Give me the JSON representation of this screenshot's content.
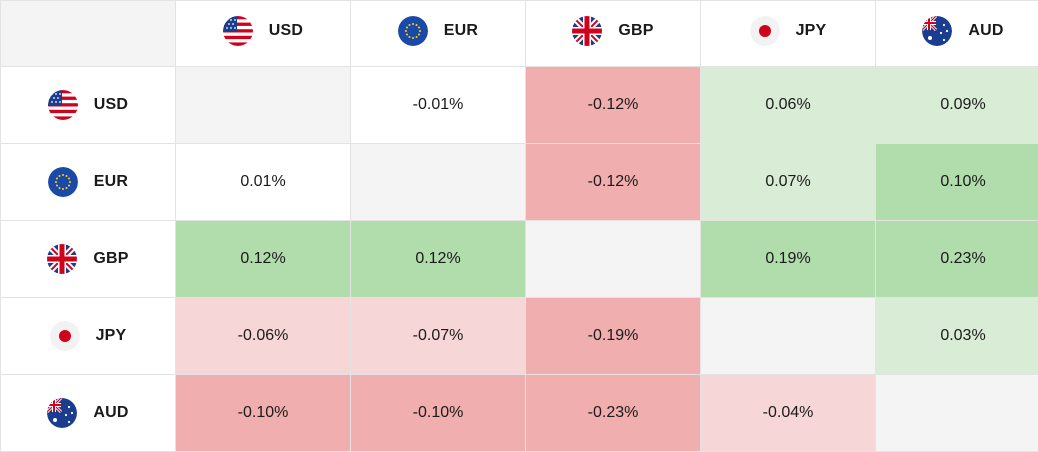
{
  "currencies": [
    "USD",
    "EUR",
    "GBP",
    "JPY",
    "AUD"
  ],
  "flags": [
    "us-flag-icon",
    "eu-flag-icon",
    "uk-flag-icon",
    "japan-flag-icon",
    "australia-flag-icon"
  ],
  "rows": [
    {
      "code": "USD",
      "cells": [
        "",
        "-0.01%",
        "-0.12%",
        "0.06%",
        "0.09%"
      ]
    },
    {
      "code": "EUR",
      "cells": [
        "0.01%",
        "",
        "-0.12%",
        "0.07%",
        "0.10%"
      ]
    },
    {
      "code": "GBP",
      "cells": [
        "0.12%",
        "0.12%",
        "",
        "0.19%",
        "0.23%"
      ]
    },
    {
      "code": "JPY",
      "cells": [
        "-0.06%",
        "-0.07%",
        "-0.19%",
        "",
        "0.03%"
      ]
    },
    {
      "code": "AUD",
      "cells": [
        "-0.10%",
        "-0.10%",
        "-0.23%",
        "-0.04%",
        ""
      ]
    }
  ],
  "colors": {
    "diagonal": "#f4f4f4",
    "neutral": "#ffffff",
    "positive_light": "#d9ecd6",
    "positive_strong": "#b1dcab",
    "negative_light": "#f6d6d7",
    "negative_strong": "#f0aeae"
  },
  "cell_shading": [
    [
      "diag",
      "neutral",
      "neg2",
      "pos1",
      "pos1"
    ],
    [
      "neutral",
      "diag",
      "neg2",
      "pos1",
      "pos2"
    ],
    [
      "pos2",
      "pos2",
      "diag",
      "pos2",
      "pos2"
    ],
    [
      "neg1",
      "neg1",
      "neg2",
      "diag",
      "pos1"
    ],
    [
      "neg2",
      "neg2",
      "neg2",
      "neg1",
      "diag"
    ]
  ]
}
